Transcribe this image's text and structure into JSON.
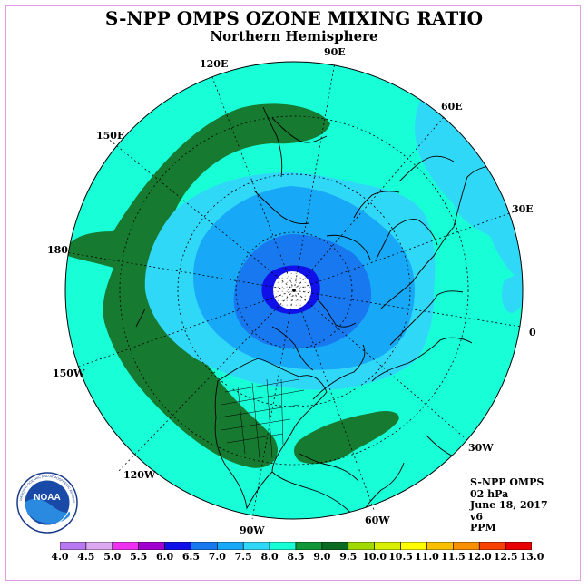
{
  "header": {
    "title": "S-NPP OMPS OZONE MIXING RATIO",
    "subtitle": "Northern Hemisphere"
  },
  "longitude_labels": [
    "90E",
    "60E",
    "30E",
    "0",
    "30W",
    "60W",
    "90W",
    "120W",
    "150W",
    "180",
    "150E",
    "120E"
  ],
  "info": {
    "instrument": "S-NPP OMPS",
    "level": "02 hPa",
    "date": "June 18, 2017",
    "version": "v6",
    "units": "PPM"
  },
  "logo": {
    "text": "NOAA",
    "ring_text": "NATIONAL OCEANIC AND ATMOSPHERIC ADMINISTRATION"
  },
  "colorbar": {
    "labels": [
      "4.0",
      "4.5",
      "5.0",
      "5.5",
      "6.0",
      "6.5",
      "7.0",
      "7.5",
      "8.0",
      "8.5",
      "9.0",
      "9.5",
      "10.0",
      "10.5",
      "11.0",
      "11.5",
      "12.0",
      "12.5",
      "13.0"
    ],
    "colors": [
      "#b878f0",
      "#dca8f0",
      "#f030f0",
      "#a000d0",
      "#1010e8",
      "#1878f0",
      "#18a8f8",
      "#30d8f8",
      "#18ffd8",
      "#109838",
      "#0a6a20",
      "#a0d800",
      "#d8f000",
      "#ffff00",
      "#f8c000",
      "#f89000",
      "#f84000",
      "#e80000",
      "#8a5a40"
    ]
  },
  "contour_colors": {
    "c75": "#18ffd8",
    "c70": "#30d8f8",
    "c65": "#18a8f8",
    "c60": "#1878f0",
    "c55": "#1010e8",
    "c85": "#167a30"
  }
}
